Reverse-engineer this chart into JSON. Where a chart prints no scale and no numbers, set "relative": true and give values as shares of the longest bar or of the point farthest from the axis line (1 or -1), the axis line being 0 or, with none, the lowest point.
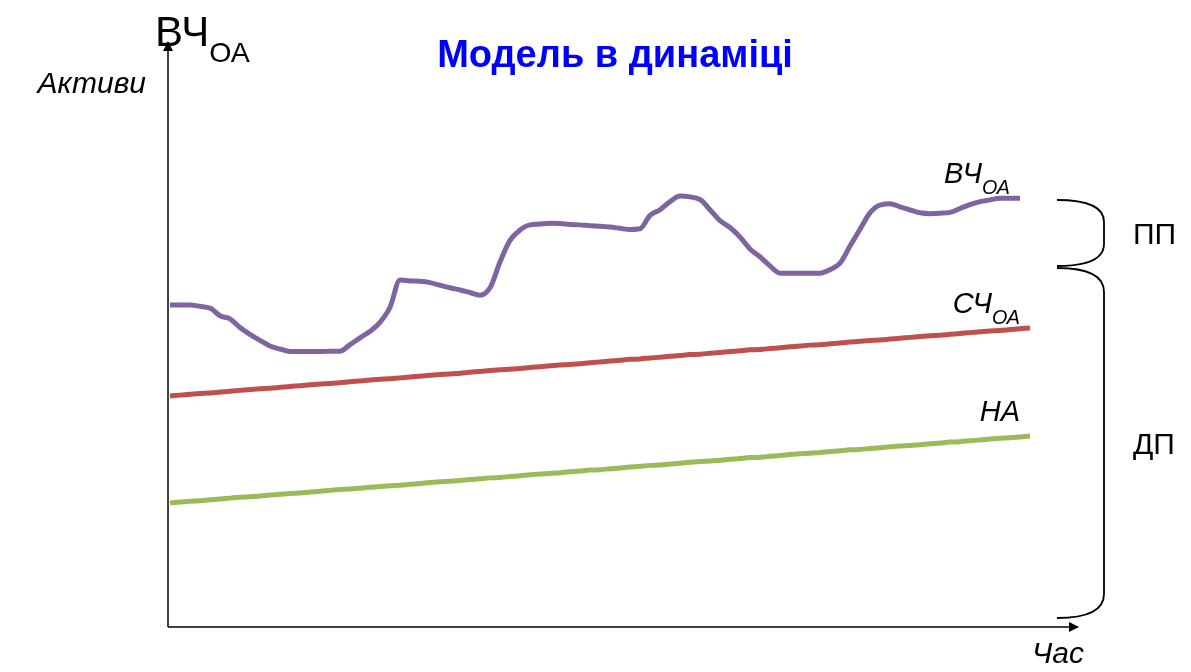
{
  "chart_data": {
    "type": "line",
    "title": "Модель в динаміці",
    "xlabel": "Час",
    "ylabel": "Активи",
    "annotations": [
      "ВЧ$_{ОА}$",
      "ПП",
      "ДП"
    ],
    "relative": true,
    "categories": [
      null,
      null,
      null,
      null,
      null,
      null,
      null,
      null,
      null,
      null,
      null,
      null,
      null,
      null,
      null,
      null,
      null,
      null,
      null,
      null,
      null,
      null,
      null,
      null,
      null,
      null,
      null,
      null,
      null,
      null,
      null,
      null,
      null,
      null,
      null,
      null,
      null,
      null,
      null,
      null,
      null,
      null,
      null,
      null,
      null,
      null,
      null,
      null,
      null,
      null,
      null,
      null,
      null,
      null,
      null,
      null,
      null,
      null,
      null,
      null,
      null,
      null,
      null,
      null,
      null,
      null,
      null,
      null,
      null,
      null,
      null,
      null,
      null,
      null,
      null,
      null,
      null,
      null,
      null,
      null,
      null,
      null,
      null,
      null,
      null,
      null,
      null
    ],
    "series": [
      {
        "name": "ВЧ$_{ОА}$",
        "color": "#8064a2",
        "values": [
          0.747,
          0.747,
          0.747,
          0.744,
          0.74,
          0.722,
          0.715,
          0.695,
          0.679,
          0.665,
          0.652,
          0.645,
          0.639,
          0.639,
          0.639,
          0.639,
          0.64,
          0.64,
          0.655,
          0.671,
          0.686,
          0.707,
          0.742,
          0.805,
          0.803,
          0.802,
          0.799,
          0.793,
          0.787,
          0.782,
          0.776,
          0.77,
          0.787,
          0.847,
          0.897,
          0.921,
          0.933,
          0.935,
          0.937,
          0.936,
          0.934,
          0.933,
          0.931,
          0.93,
          0.928,
          0.925,
          0.922,
          0.924,
          0.955,
          0.968,
          0.987,
          1,
          0.998,
          0.992,
          0.968,
          0.943,
          0.927,
          0.905,
          0.877,
          0.859,
          0.838,
          0.821,
          0.821,
          0.821,
          0.821,
          0.821,
          0.829,
          0.844,
          0.884,
          0.923,
          0.961,
          0.979,
          0.982,
          0.975,
          0.968,
          0.961,
          0.959,
          0.96,
          0.962,
          0.971,
          0.98,
          0.987,
          0.991,
          0.995,
          0.995,
          0.995,
          null
        ]
      },
      {
        "name": "СЧ$_{ОА}$",
        "color": "#c0504d",
        "values": [
          0.536,
          0.538,
          0.54,
          0.542,
          0.543,
          0.545,
          0.547,
          0.549,
          0.551,
          0.553,
          0.554,
          0.556,
          0.558,
          0.56,
          0.562,
          0.564,
          0.565,
          0.567,
          0.569,
          0.571,
          0.573,
          0.575,
          0.576,
          0.578,
          0.58,
          0.582,
          0.584,
          0.586,
          0.587,
          0.589,
          0.591,
          0.593,
          0.595,
          0.597,
          0.598,
          0.6,
          0.602,
          0.604,
          0.606,
          0.608,
          0.609,
          0.611,
          0.613,
          0.615,
          0.617,
          0.619,
          0.621,
          0.622,
          0.624,
          0.626,
          0.628,
          0.63,
          0.632,
          0.633,
          0.635,
          0.637,
          0.639,
          0.641,
          0.643,
          0.644,
          0.646,
          0.648,
          0.65,
          0.652,
          0.654,
          0.655,
          0.657,
          0.659,
          0.661,
          0.663,
          0.665,
          0.666,
          0.668,
          0.67,
          0.672,
          0.674,
          0.676,
          0.677,
          0.679,
          0.681,
          0.683,
          0.685,
          0.687,
          0.688,
          0.69,
          0.692,
          0.694
        ]
      },
      {
        "name": "НА",
        "color": "#9bbb59",
        "values": [
          0.288,
          0.29,
          0.292,
          0.293,
          0.295,
          0.297,
          0.299,
          0.301,
          0.302,
          0.304,
          0.306,
          0.308,
          0.31,
          0.311,
          0.313,
          0.315,
          0.317,
          0.319,
          0.32,
          0.322,
          0.324,
          0.326,
          0.328,
          0.329,
          0.331,
          0.333,
          0.335,
          0.337,
          0.338,
          0.34,
          0.342,
          0.344,
          0.346,
          0.347,
          0.349,
          0.351,
          0.353,
          0.355,
          0.356,
          0.358,
          0.36,
          0.362,
          0.364,
          0.365,
          0.367,
          0.369,
          0.371,
          0.373,
          0.375,
          0.376,
          0.378,
          0.38,
          0.382,
          0.384,
          0.385,
          0.387,
          0.389,
          0.391,
          0.393,
          0.394,
          0.396,
          0.398,
          0.4,
          0.402,
          0.403,
          0.405,
          0.407,
          0.409,
          0.411,
          0.412,
          0.414,
          0.416,
          0.418,
          0.42,
          0.421,
          0.423,
          0.425,
          0.427,
          0.429,
          0.43,
          0.432,
          0.434,
          0.436,
          0.438,
          0.439,
          0.441,
          0.443
        ]
      }
    ]
  }
}
